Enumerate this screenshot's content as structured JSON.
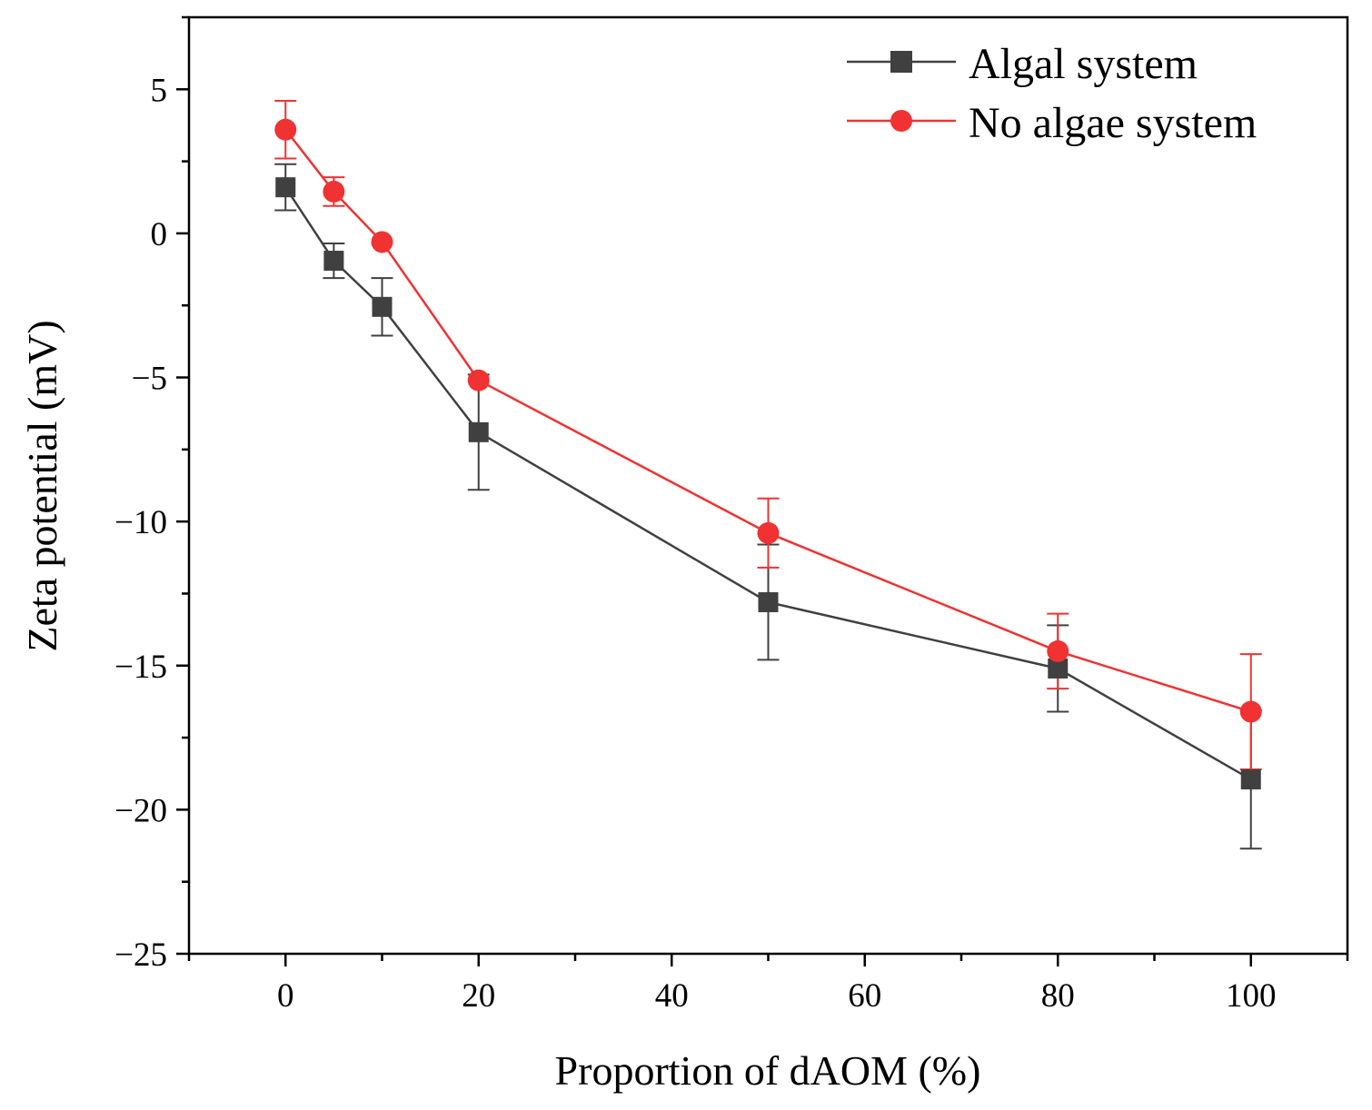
{
  "chart_data": {
    "type": "line",
    "title": "",
    "xlabel": "Proportion of dAOM (%)",
    "ylabel": "Zeta potential (mV)",
    "xlim": [
      -10,
      110
    ],
    "ylim": [
      -25,
      7.5
    ],
    "x_ticks": [
      0,
      20,
      40,
      60,
      80,
      100
    ],
    "x_tick_labels": [
      "0",
      "20",
      "40",
      "60",
      "80",
      "100"
    ],
    "y_ticks": [
      5,
      0,
      -5,
      -10,
      -15,
      -20,
      -25
    ],
    "y_tick_labels": [
      "5",
      "0",
      "−5",
      "−10",
      "−15",
      "−20",
      "−25"
    ],
    "x": [
      0,
      5,
      10,
      20,
      50,
      80,
      100
    ],
    "legend_position": "top-right",
    "series": [
      {
        "name": "Algal system",
        "marker": "square",
        "color": "#404040",
        "values": [
          1.6,
          -0.95,
          -2.55,
          -6.9,
          -12.8,
          -15.1,
          -18.95
        ],
        "errors": [
          0.8,
          0.6,
          1.0,
          2.0,
          2.0,
          1.5,
          2.4
        ]
      },
      {
        "name": "No algae system",
        "marker": "circle",
        "color": "#f03232",
        "values": [
          3.6,
          1.45,
          -0.3,
          -5.1,
          -10.4,
          -14.5,
          -16.6
        ],
        "errors": [
          1.0,
          0.5,
          0.0,
          0.0,
          1.2,
          1.3,
          2.0
        ]
      }
    ]
  }
}
